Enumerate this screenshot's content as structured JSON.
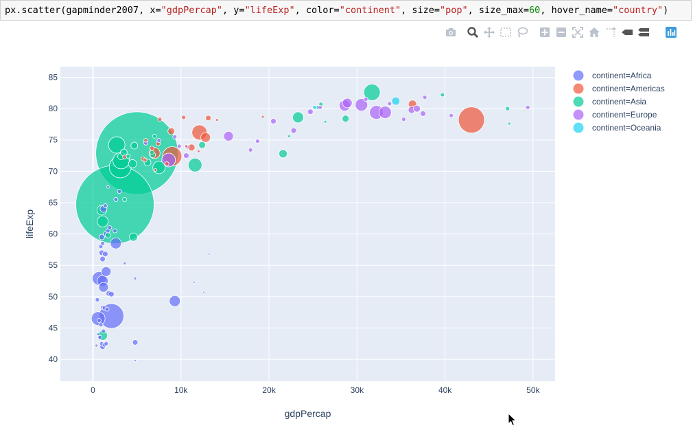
{
  "code": {
    "prefix": "px.scatter(gapminder2007, x=",
    "x_str": "\"gdpPercap\"",
    "y_sep": ", y=",
    "y_str": "\"lifeExp\"",
    "c_sep": ", color=",
    "c_str": "\"continent\"",
    "s_sep": ", size=",
    "s_str": "\"pop\"",
    "m_sep": ", size_max=",
    "m_num": "60",
    "h_sep": ", hover_name=",
    "h_str": "\"country\"",
    "suffix": ")"
  },
  "modebar": [
    "camera-icon",
    "zoom-icon",
    "pan-icon",
    "box-select-icon",
    "lasso-icon",
    "zoom-in-icon",
    "zoom-out-icon",
    "autoscale-icon",
    "home-icon",
    "spike-lines-icon",
    "hover-closest-icon",
    "hover-compare-icon",
    "plotly-logo-icon"
  ],
  "colors": {
    "Africa": "#636efa",
    "Americas": "#ef553b",
    "Asia": "#00cc96",
    "Europe": "#ab63fa",
    "Oceania": "#19d3f3",
    "plot_bg": "#e5ecf6",
    "grid": "#ffffff",
    "axis_text": "#2a3f5f"
  },
  "chart_data": {
    "type": "scatter",
    "xlabel": "gdpPercap",
    "ylabel": "lifeExp",
    "xlim": [
      -3700,
      52500
    ],
    "ylim": [
      36.5,
      86.7
    ],
    "xticks": [
      0,
      10000,
      20000,
      30000,
      40000,
      50000
    ],
    "xtick_labels": [
      "0",
      "10k",
      "20k",
      "30k",
      "40k",
      "50k"
    ],
    "yticks": [
      40,
      45,
      50,
      55,
      60,
      65,
      70,
      75,
      80,
      85
    ],
    "ytick_labels": [
      "40",
      "45",
      "50",
      "55",
      "60",
      "65",
      "70",
      "75",
      "80",
      "85"
    ],
    "grid": true,
    "legend_position": "right",
    "series": [
      {
        "name": "continent=Africa",
        "color": "#636efa",
        "points": [
          [
            2100,
            46.9,
            18
          ],
          [
            600,
            46.5,
            10
          ],
          [
            700,
            52.9,
            10
          ],
          [
            1100,
            52.5,
            8
          ],
          [
            1200,
            51.5,
            7
          ],
          [
            1500,
            54,
            7
          ],
          [
            2600,
            58.5,
            8
          ],
          [
            9300,
            49.3,
            8
          ],
          [
            1100,
            56,
            4
          ],
          [
            1000,
            57,
            4
          ],
          [
            1400,
            56.8,
            4
          ],
          [
            900,
            58,
            3
          ],
          [
            1100,
            58.5,
            3
          ],
          [
            1000,
            59.5,
            4
          ],
          [
            1500,
            60,
            4
          ],
          [
            1700,
            60.5,
            3
          ],
          [
            1800,
            50.5,
            4
          ],
          [
            2100,
            50.4,
            4
          ],
          [
            500,
            49.5,
            3
          ],
          [
            1100,
            48.3,
            3
          ],
          [
            1300,
            48.2,
            3
          ],
          [
            1600,
            48,
            3
          ],
          [
            700,
            46.2,
            3
          ],
          [
            900,
            45.5,
            3
          ],
          [
            1200,
            44.5,
            3
          ],
          [
            800,
            43.5,
            3
          ],
          [
            1000,
            42.5,
            3
          ],
          [
            1100,
            42,
            4
          ],
          [
            1300,
            42.3,
            3
          ],
          [
            1500,
            42.5,
            3
          ],
          [
            4800,
            42.7,
            4
          ],
          [
            3600,
            55.3,
            2
          ],
          [
            4800,
            52.9,
            2
          ],
          [
            12600,
            50.7,
            1.5
          ],
          [
            11500,
            52.3,
            1.5
          ],
          [
            13200,
            56.8,
            1.5
          ],
          [
            2500,
            60.5,
            3
          ],
          [
            1900,
            61,
            3
          ],
          [
            1200,
            64,
            5
          ],
          [
            1400,
            64.5,
            3
          ],
          [
            2600,
            65.5,
            3
          ],
          [
            3000,
            66.8,
            3
          ],
          [
            1700,
            67.5,
            2
          ],
          [
            4800,
            39.8,
            1.5
          ],
          [
            400,
            42.2,
            2
          ],
          [
            600,
            44,
            2
          ]
        ]
      },
      {
        "name": "continent=Americas",
        "color": "#ef553b",
        "points": [
          [
            43000,
            78.2,
            19
          ],
          [
            9000,
            72.4,
            14
          ],
          [
            12100,
            76.2,
            11
          ],
          [
            36300,
            80.7,
            6
          ],
          [
            7000,
            72.9,
            8
          ],
          [
            12800,
            75.4,
            7
          ],
          [
            11200,
            73.8,
            5
          ],
          [
            8900,
            76.4,
            5
          ],
          [
            10300,
            78.6,
            3
          ],
          [
            13100,
            78.5,
            4
          ],
          [
            7600,
            78.3,
            3
          ],
          [
            6700,
            73.7,
            3
          ],
          [
            5700,
            72,
            3
          ],
          [
            6000,
            74.9,
            3
          ],
          [
            5900,
            71.8,
            3
          ],
          [
            7400,
            74.4,
            3
          ],
          [
            12000,
            73.2,
            2
          ],
          [
            14100,
            78.2,
            2
          ],
          [
            19300,
            78.7,
            2
          ],
          [
            3600,
            72.3,
            3
          ],
          [
            7100,
            70.2,
            2
          ],
          [
            8400,
            71.2,
            3
          ],
          [
            10600,
            74,
            2
          ]
        ]
      },
      {
        "name": "continent=Asia",
        "color": "#00cc96",
        "points": [
          [
            5000,
            72.9,
            60
          ],
          [
            2500,
            64.7,
            57
          ],
          [
            31700,
            82.6,
            12
          ],
          [
            3100,
            70.7,
            16
          ],
          [
            2700,
            74.2,
            12
          ],
          [
            3200,
            71.7,
            12
          ],
          [
            11600,
            71,
            10
          ],
          [
            7500,
            70.6,
            9
          ],
          [
            4700,
            74.1,
            5
          ],
          [
            3200,
            72.4,
            5
          ],
          [
            4500,
            71.2,
            6
          ],
          [
            21600,
            72.8,
            6
          ],
          [
            28700,
            78.4,
            5
          ],
          [
            23300,
            78.6,
            8
          ],
          [
            6200,
            71.4,
            5
          ],
          [
            1100,
            62,
            8
          ],
          [
            1000,
            63.8,
            7
          ],
          [
            3600,
            65.5,
            3
          ],
          [
            1700,
            59.8,
            4
          ],
          [
            4600,
            59.5,
            6
          ],
          [
            1100,
            43.8,
            7
          ],
          [
            12400,
            74.2,
            5
          ],
          [
            25500,
            80.2,
            3
          ],
          [
            39700,
            82.2,
            3
          ],
          [
            47100,
            80,
            3
          ],
          [
            47300,
            77.6,
            2
          ],
          [
            22300,
            75.6,
            2
          ],
          [
            25900,
            80.7,
            3
          ],
          [
            26400,
            77.9,
            2
          ],
          [
            6800,
            72.6,
            4
          ],
          [
            3500,
            73,
            5
          ],
          [
            7000,
            75.6,
            3
          ],
          [
            4000,
            72.4,
            3
          ],
          [
            6700,
            73,
            3
          ]
        ]
      },
      {
        "name": "continent=Europe",
        "color": "#ab63fa",
        "points": [
          [
            32200,
            79.4,
            10
          ],
          [
            30500,
            80.6,
            9
          ],
          [
            33200,
            79.4,
            9
          ],
          [
            28600,
            80.5,
            8
          ],
          [
            8600,
            71.8,
            10
          ],
          [
            15400,
            75.6,
            7
          ],
          [
            36200,
            79.8,
            5
          ],
          [
            37500,
            79.2,
            4
          ],
          [
            36800,
            80,
            5
          ],
          [
            28900,
            80.9,
            7
          ],
          [
            24700,
            79.5,
            4
          ],
          [
            33700,
            80.8,
            3
          ],
          [
            40700,
            78.9,
            3
          ],
          [
            49400,
            80.2,
            3
          ],
          [
            35300,
            78.3,
            3
          ],
          [
            17900,
            73.4,
            3
          ],
          [
            20500,
            78,
            4
          ],
          [
            22800,
            76.5,
            4
          ],
          [
            18700,
            74.8,
            3
          ],
          [
            10600,
            72.5,
            4
          ],
          [
            9800,
            74,
            3
          ],
          [
            7500,
            74.9,
            3
          ],
          [
            10700,
            73.9,
            3
          ],
          [
            6000,
            74.5,
            3
          ],
          [
            9300,
            75.5,
            3
          ],
          [
            37700,
            81.8,
            3
          ],
          [
            25800,
            80.2,
            3
          ],
          [
            31000,
            81.5,
            3
          ]
        ]
      },
      {
        "name": "continent=Oceania",
        "color": "#19d3f3",
        "points": [
          [
            34400,
            81.2,
            6
          ],
          [
            25200,
            80.2,
            3
          ]
        ]
      }
    ]
  }
}
